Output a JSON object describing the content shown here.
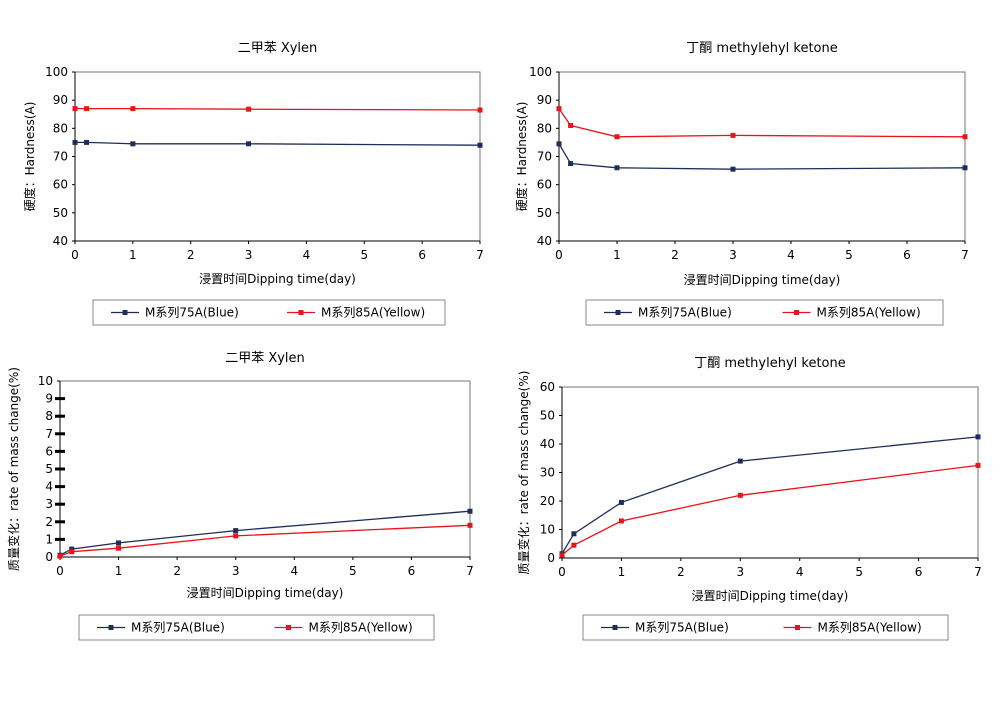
{
  "chart_data": [
    {
      "type": "line",
      "title": "二甲苯 Xylen",
      "xlabel": "浸置时间Dipping time(day)",
      "ylabel": "硬度：Hardness(A)",
      "xlim": [
        0,
        7
      ],
      "ylim": [
        40,
        100
      ],
      "xticks": [
        0,
        1,
        2,
        3,
        4,
        5,
        6,
        7
      ],
      "yticks": [
        40,
        50,
        60,
        70,
        80,
        90,
        100
      ],
      "grid": false,
      "legend": "bottom",
      "series": [
        {
          "name": "M系列75A(Blue)",
          "color": "#1f2d5c",
          "marker": "square",
          "x": [
            0,
            0.2,
            1,
            3,
            7
          ],
          "y": [
            75,
            75,
            74.5,
            74.5,
            74
          ]
        },
        {
          "name": "M系列85A(Yellow)",
          "color": "#e8141b",
          "marker": "square",
          "x": [
            0,
            0.2,
            1,
            3,
            7
          ],
          "y": [
            87,
            87,
            87,
            86.8,
            86.5
          ]
        }
      ]
    },
    {
      "type": "line",
      "title": "丁酮 methylehyl ketone",
      "xlabel": "浸置时间Dipping time(day)",
      "ylabel": "硬度：Hardness(A)",
      "xlim": [
        0,
        7
      ],
      "ylim": [
        40,
        100
      ],
      "xticks": [
        0,
        1,
        2,
        3,
        4,
        5,
        6,
        7
      ],
      "yticks": [
        40,
        50,
        60,
        70,
        80,
        90,
        100
      ],
      "grid": false,
      "legend": "bottom",
      "series": [
        {
          "name": "M系列75A(Blue)",
          "color": "#1f2d5c",
          "marker": "square",
          "x": [
            0,
            0.2,
            1,
            3,
            7
          ],
          "y": [
            74.5,
            67.5,
            66,
            65.5,
            66
          ]
        },
        {
          "name": "M系列85A(Yellow)",
          "color": "#e8141b",
          "marker": "square",
          "x": [
            0,
            0.2,
            1,
            3,
            7
          ],
          "y": [
            87,
            81,
            77,
            77.5,
            77
          ]
        }
      ]
    },
    {
      "type": "line",
      "title": "二甲苯 Xylen",
      "xlabel": "浸置时间Dipping time(day)",
      "ylabel": "质量变化：rate of mass change(%)",
      "xlim": [
        0,
        7
      ],
      "ylim": [
        0,
        10
      ],
      "xticks": [
        0,
        1,
        2,
        3,
        4,
        5,
        6,
        7
      ],
      "yticks": [
        0,
        1,
        2,
        3,
        4,
        5,
        6,
        7,
        8,
        9,
        10
      ],
      "grid": false,
      "legend": "bottom",
      "series": [
        {
          "name": "M系列75A(Blue)",
          "color": "#1f2d5c",
          "marker": "square",
          "x": [
            0,
            0.2,
            1,
            3,
            7
          ],
          "y": [
            0.1,
            0.45,
            0.8,
            1.5,
            2.6
          ]
        },
        {
          "name": "M系列85A(Yellow)",
          "color": "#e8141b",
          "marker": "square",
          "x": [
            0,
            0.2,
            1,
            3,
            7
          ],
          "y": [
            0.05,
            0.3,
            0.5,
            1.2,
            1.8
          ]
        }
      ]
    },
    {
      "type": "line",
      "title": "丁酮 methylehyl ketone",
      "xlabel": "浸置时间Dipping time(day)",
      "ylabel": "质量变化：rate of mass change(%)",
      "xlim": [
        0,
        7
      ],
      "ylim": [
        0,
        60
      ],
      "xticks": [
        0,
        1,
        2,
        3,
        4,
        5,
        6,
        7
      ],
      "yticks": [
        0,
        10,
        20,
        30,
        40,
        50,
        60
      ],
      "grid": false,
      "legend": "bottom",
      "series": [
        {
          "name": "M系列75A(Blue)",
          "color": "#1f2d5c",
          "marker": "square",
          "x": [
            0,
            0.2,
            1,
            3,
            7
          ],
          "y": [
            1.5,
            8.5,
            19.5,
            34,
            42.5
          ]
        },
        {
          "name": "M系列85A(Yellow)",
          "color": "#e8141b",
          "marker": "square",
          "x": [
            0,
            0.2,
            1,
            3,
            7
          ],
          "y": [
            1,
            4.5,
            13,
            22,
            32.5
          ]
        }
      ]
    }
  ]
}
